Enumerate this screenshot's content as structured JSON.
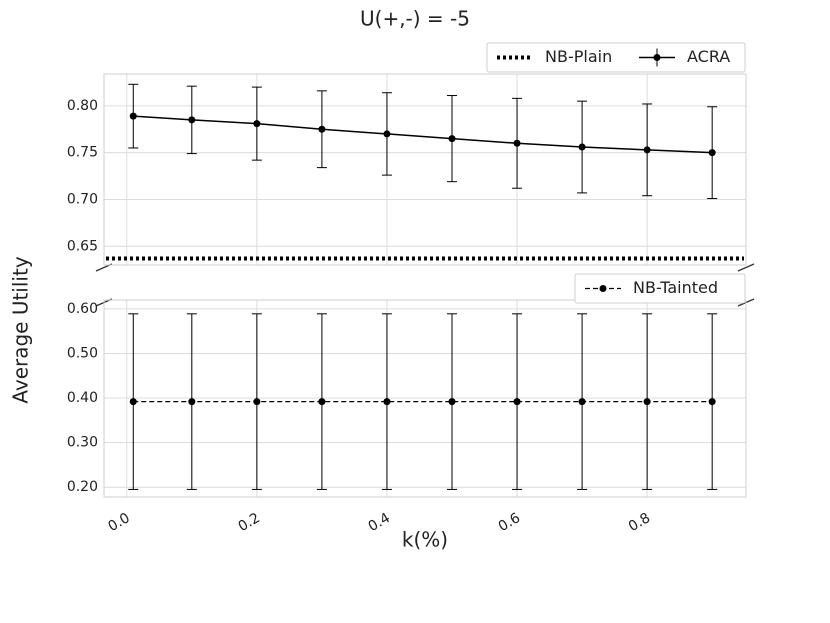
{
  "chart_data": {
    "type": "line",
    "title": "U(+,-) = -5",
    "xlabel": "k(%)",
    "ylabel": "Average Utility",
    "x": [
      0.01,
      0.1,
      0.2,
      0.3,
      0.4,
      0.5,
      0.6,
      0.7,
      0.8,
      0.9
    ],
    "xlim": [
      -0.035,
      0.952
    ],
    "xticks": [
      {
        "value": 0,
        "label": "0.0"
      },
      0.2,
      0.4,
      0.6,
      0.8
    ],
    "grid": true,
    "panels": [
      {
        "ylim": [
          0.63,
          0.834
        ],
        "yticks": [
          {
            "value": 0.65,
            "label": "0.65"
          },
          {
            "value": 0.7,
            "label": "0.70"
          },
          {
            "value": 0.75,
            "label": "0.75"
          },
          {
            "value": 0.8,
            "label": "0.80"
          }
        ],
        "legend": "upper right",
        "series": [
          {
            "name": "NB-Plain",
            "color": "#000000",
            "style": "dotted",
            "value": 0.637
          },
          {
            "name": "ACRA",
            "color": "#000000",
            "style": "solid",
            "marker": true,
            "values": [
              0.789,
              0.785,
              0.781,
              0.775,
              0.77,
              0.765,
              0.76,
              0.756,
              0.753,
              0.75
            ],
            "errors": [
              0.034,
              0.036,
              0.039,
              0.041,
              0.044,
              0.046,
              0.048,
              0.049,
              0.049,
              0.049
            ]
          }
        ]
      },
      {
        "ylim": [
          0.178,
          0.62
        ],
        "yticks": [
          {
            "value": 0.2,
            "label": "0.20"
          },
          {
            "value": 0.3,
            "label": "0.30"
          },
          {
            "value": 0.4,
            "label": "0.40"
          },
          {
            "value": 0.5,
            "label": "0.50"
          },
          {
            "value": 0.6,
            "label": "0.60"
          }
        ],
        "legend": "upper right",
        "series": [
          {
            "name": "NB-Tainted",
            "color": "#000000",
            "style": "dashed",
            "marker": true,
            "values": [
              0.392,
              0.392,
              0.392,
              0.392,
              0.392,
              0.392,
              0.392,
              0.392,
              0.392,
              0.392
            ],
            "errors": [
              0.197,
              0.197,
              0.197,
              0.197,
              0.197,
              0.197,
              0.197,
              0.197,
              0.197,
              0.197
            ]
          }
        ]
      }
    ]
  }
}
